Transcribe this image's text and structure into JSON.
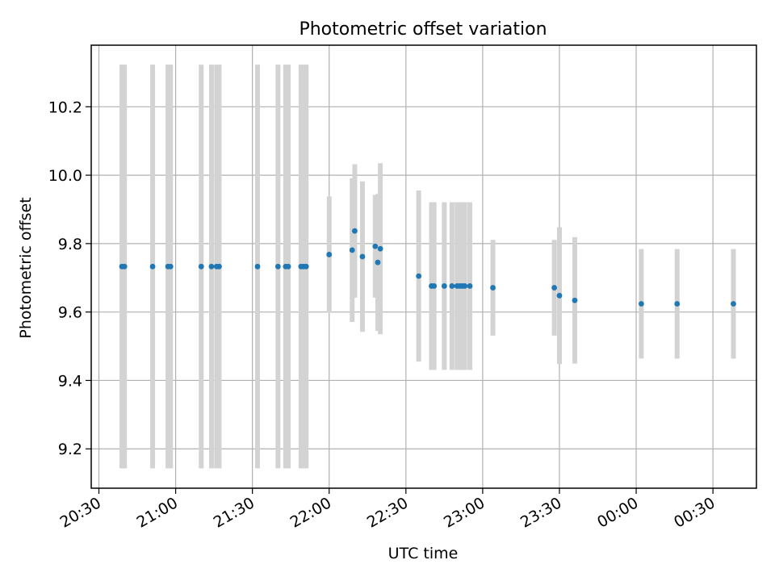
{
  "chart_data": {
    "type": "scatter",
    "title": "Photometric offset variation",
    "xlabel": "UTC time",
    "ylabel": "Photometric offset",
    "grid": true,
    "x_ticks": [
      "20:30",
      "21:00",
      "21:30",
      "22:00",
      "22:30",
      "23:00",
      "23:30",
      "00:00",
      "00:30"
    ],
    "y_ticks": [
      "9.2",
      "9.4",
      "9.6",
      "9.8",
      "10.0",
      "10.2"
    ],
    "xlim": [
      "2023-01-01T20:27",
      "2023-01-02T00:47"
    ],
    "ylim": [
      9.085,
      10.38
    ],
    "point_color": "#1f77b4",
    "errorbar_color": "#d3d3d3",
    "series": [
      {
        "x": [
          "2023-01-01T20:39",
          "2023-01-01T20:40",
          "2023-01-01T20:51",
          "2023-01-01T20:57",
          "2023-01-01T20:58",
          "2023-01-01T21:10",
          "2023-01-01T21:14",
          "2023-01-01T21:16",
          "2023-01-01T21:17",
          "2023-01-01T21:32",
          "2023-01-01T21:40",
          "2023-01-01T21:43",
          "2023-01-01T21:44",
          "2023-01-01T21:49",
          "2023-01-01T21:50",
          "2023-01-01T21:51",
          "2023-01-01T22:00",
          "2023-01-01T22:09",
          "2023-01-01T22:10",
          "2023-01-01T22:13",
          "2023-01-01T22:18",
          "2023-01-01T22:19",
          "2023-01-01T22:20",
          "2023-01-01T22:35",
          "2023-01-01T22:40",
          "2023-01-01T22:41",
          "2023-01-01T22:45",
          "2023-01-01T22:48",
          "2023-01-01T22:50",
          "2023-01-01T22:51",
          "2023-01-01T22:52",
          "2023-01-01T22:53",
          "2023-01-01T22:55",
          "2023-01-01T23:04",
          "2023-01-01T23:28",
          "2023-01-01T23:30",
          "2023-01-01T23:36",
          "2023-01-02T00:02",
          "2023-01-02T00:16",
          "2023-01-02T00:38"
        ],
        "y": [
          9.733,
          9.733,
          9.733,
          9.733,
          9.733,
          9.733,
          9.733,
          9.733,
          9.733,
          9.733,
          9.733,
          9.733,
          9.733,
          9.733,
          9.733,
          9.733,
          9.768,
          9.781,
          9.837,
          9.762,
          9.792,
          9.745,
          9.785,
          9.705,
          9.676,
          9.676,
          9.676,
          9.676,
          9.676,
          9.676,
          9.676,
          9.676,
          9.676,
          9.671,
          9.671,
          9.648,
          9.634,
          9.624,
          9.624,
          9.624
        ],
        "yerr": [
          0.59,
          0.59,
          0.59,
          0.59,
          0.59,
          0.59,
          0.59,
          0.59,
          0.59,
          0.59,
          0.59,
          0.59,
          0.59,
          0.59,
          0.59,
          0.59,
          0.17,
          0.21,
          0.195,
          0.22,
          0.15,
          0.2,
          0.25,
          0.25,
          0.245,
          0.245,
          0.245,
          0.245,
          0.245,
          0.245,
          0.245,
          0.245,
          0.245,
          0.14,
          0.14,
          0.2,
          0.185,
          0.16,
          0.16,
          0.16
        ]
      }
    ]
  }
}
